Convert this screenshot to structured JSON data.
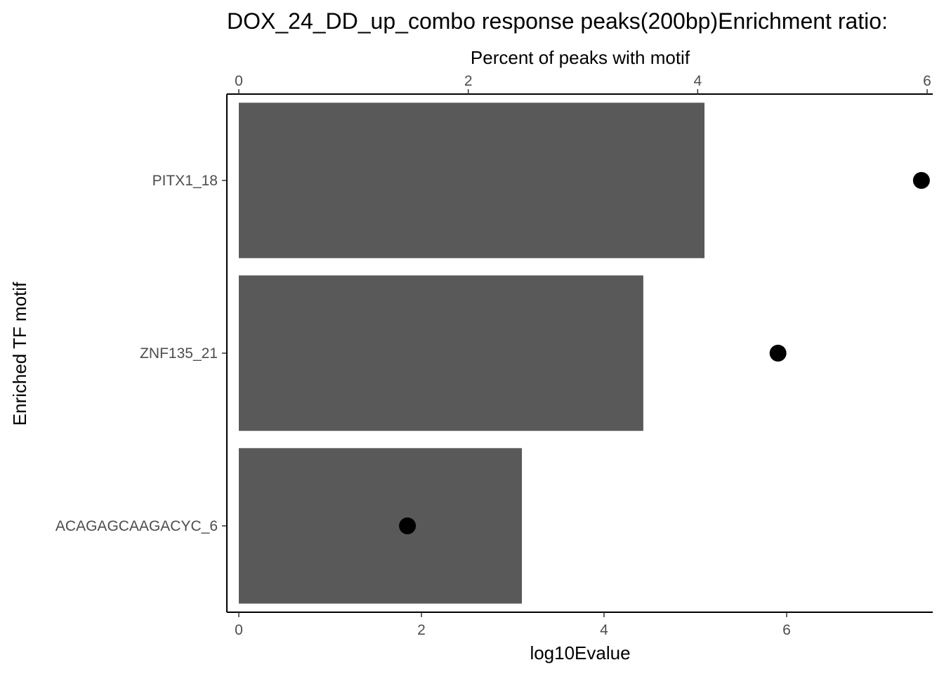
{
  "chart_data": {
    "type": "bar",
    "title": "DOX_24_DD_up_combo response peaks(200bp)Enrichment ratio:",
    "categories": [
      "PITX1_18",
      "ZNF135_21",
      "ACAGAGCAAGACYC_6"
    ],
    "bar_series": {
      "axis_label": "log10Evalue",
      "values": [
        5.1,
        4.43,
        3.1
      ],
      "xlim": [
        0,
        7.6
      ],
      "ticks": [
        0,
        2,
        4,
        6
      ],
      "color": "#595959"
    },
    "point_series": {
      "axis_label": "Percent of peaks with motif",
      "values": [
        5.95,
        4.7,
        1.47
      ],
      "xlim": [
        0,
        6.0
      ],
      "ticks": [
        0,
        2,
        4,
        6
      ],
      "color": "#000000"
    },
    "ylabel": "Enriched TF motif",
    "grid": false,
    "legend": "none"
  }
}
